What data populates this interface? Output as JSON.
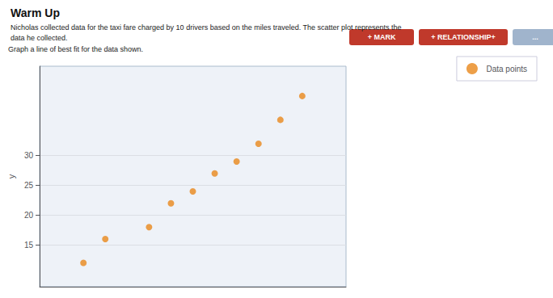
{
  "chart_data": {
    "type": "scatter",
    "title": "Warm Up",
    "subtitle": [
      "Nicholas collected data for the taxi fare charged by 10 drivers based on the miles traveled. The scatter plot represents the",
      "data he collected."
    ],
    "annotations": [
      "Graph a line of best fit for the data shown.",
      "+ MARK",
      "+ RELATIONSHIP+",
      "..."
    ],
    "ylabel": "y",
    "x": [
      2,
      3,
      5,
      6,
      7,
      8,
      9,
      10,
      11,
      12
    ],
    "series": [
      {
        "name": "Data points",
        "color": "#E8871A",
        "values": [
          12,
          16,
          18,
          22,
          24,
          27,
          29,
          32,
          36,
          40
        ]
      }
    ],
    "xlim": [
      0,
      14
    ],
    "ylim": [
      8,
      45
    ],
    "yticks": [
      30,
      25,
      20,
      15
    ],
    "grid": true,
    "legend": "right",
    "tick_labels": "y"
  }
}
